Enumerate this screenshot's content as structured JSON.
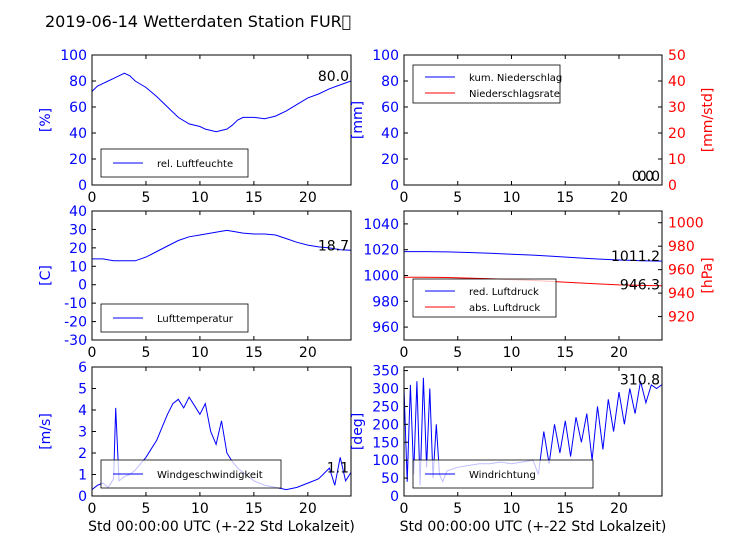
{
  "title": "2019-06-14 Wetterdaten Station FUR\u0000",
  "colors": {
    "left_axis": "#0000ff",
    "right_axis": "#ff0000",
    "text": "#000000",
    "blue": "#0000ff",
    "red": "#ff0000"
  },
  "chart_data": [
    {
      "id": "humidity",
      "type": "line",
      "xlim": [
        0,
        24
      ],
      "ylim": [
        0,
        100
      ],
      "xticks": [
        "0",
        "5",
        "10",
        "15",
        "20"
      ],
      "yticks": [
        "0",
        "20",
        "40",
        "60",
        "80",
        "100"
      ],
      "ylabel": "[%]",
      "last_value": "80.0",
      "legend": {
        "loc": "lower-left"
      },
      "series": [
        {
          "name": "rel. Luftfeuchte",
          "color": "blue",
          "x": [
            0,
            0.5,
            1,
            1.5,
            2,
            2.5,
            3,
            3.5,
            4,
            5,
            6,
            7,
            8,
            9,
            10,
            10.5,
            11,
            11.5,
            12,
            12.5,
            13,
            13.5,
            14,
            15,
            16,
            17,
            18,
            19,
            20,
            21,
            22,
            23,
            24
          ],
          "y": [
            72,
            76,
            78,
            80,
            82,
            84,
            86,
            84,
            80,
            75,
            68,
            60,
            52,
            47,
            45,
            43,
            42,
            41,
            42,
            43,
            46,
            50,
            52,
            52,
            51,
            53,
            57,
            62,
            67,
            70,
            74,
            77,
            80
          ]
        }
      ]
    },
    {
      "id": "precip",
      "type": "line",
      "xlim": [
        0,
        24
      ],
      "ylim": [
        0,
        100
      ],
      "y2lim": [
        0,
        50
      ],
      "xticks": [
        "0",
        "5",
        "10",
        "15",
        "20"
      ],
      "yticks": [
        "0",
        "20",
        "40",
        "60",
        "80",
        "100"
      ],
      "y2ticks": [
        "0",
        "10",
        "20",
        "30",
        "40",
        "50"
      ],
      "ylabel": "[mm]",
      "y2label": "[mm/std]",
      "last_value": "0.0",
      "last_value2": "0.0",
      "legend": {
        "loc": "upper-left"
      },
      "series": [
        {
          "name": "kum. Niederschlag",
          "color": "blue",
          "axis": "left",
          "x": [
            0,
            24
          ],
          "y": [
            0,
            0
          ]
        },
        {
          "name": "Niederschlagsrate",
          "color": "red",
          "axis": "right",
          "x": [
            0,
            24
          ],
          "y": [
            0,
            0
          ]
        }
      ]
    },
    {
      "id": "temperature",
      "type": "line",
      "xlim": [
        0,
        24
      ],
      "ylim": [
        -30,
        40
      ],
      "xticks": [
        "0",
        "5",
        "10",
        "15",
        "20"
      ],
      "yticks": [
        "-30",
        "-20",
        "-10",
        "0",
        "10",
        "20",
        "30",
        "40"
      ],
      "ylabel": "[C]",
      "last_value": "18.7",
      "legend": {
        "loc": "lower-left"
      },
      "series": [
        {
          "name": "Lufttemperatur",
          "color": "blue",
          "x": [
            0,
            1,
            2,
            3,
            4,
            5,
            6,
            7,
            8,
            9,
            10,
            11,
            12,
            12.5,
            13,
            14,
            15,
            16,
            17,
            18,
            19,
            20,
            21,
            22,
            23,
            24
          ],
          "y": [
            14,
            14,
            13,
            13,
            13,
            15,
            18,
            21,
            24,
            26,
            27,
            28,
            29,
            29.5,
            29,
            28,
            27.5,
            27.5,
            27,
            25,
            23,
            21.5,
            20.5,
            20,
            19,
            18.7
          ]
        }
      ]
    },
    {
      "id": "pressure",
      "type": "line",
      "xlim": [
        0,
        24
      ],
      "ylim": [
        950,
        1050
      ],
      "y2lim": [
        900,
        1010
      ],
      "xticks": [
        "0",
        "5",
        "10",
        "15",
        "20"
      ],
      "yticks": [
        "960",
        "980",
        "1000",
        "1020",
        "1040"
      ],
      "y2ticks": [
        "920",
        "940",
        "960",
        "980",
        "1000"
      ],
      "y2label": "[hPa]",
      "last_value": "1011.2",
      "last_value2": "946.3",
      "legend": {
        "loc": "lower-left"
      },
      "series": [
        {
          "name": "red. Luftdruck",
          "color": "blue",
          "axis": "left",
          "x": [
            0,
            2,
            4,
            6,
            8,
            10,
            12,
            14,
            16,
            18,
            20,
            22,
            24
          ],
          "y": [
            1018.5,
            1018.5,
            1018.3,
            1017.8,
            1017.2,
            1016.5,
            1015.8,
            1014.8,
            1013.8,
            1012.8,
            1012,
            1011.5,
            1011.2
          ]
        },
        {
          "name": "abs. Luftdruck",
          "color": "red",
          "axis": "right",
          "x": [
            0,
            2,
            4,
            6,
            8,
            10,
            12,
            14,
            16,
            18,
            20,
            22,
            24
          ],
          "y": [
            953.5,
            953.5,
            953.3,
            952.8,
            952.2,
            951.5,
            950.8,
            949.8,
            948.8,
            947.8,
            947,
            946.6,
            946.3
          ]
        }
      ]
    },
    {
      "id": "wind_speed",
      "type": "line",
      "xlim": [
        0,
        24
      ],
      "ylim": [
        0,
        6
      ],
      "xticks": [
        "0",
        "5",
        "10",
        "15",
        "20"
      ],
      "yticks": [
        "0",
        "1",
        "2",
        "3",
        "4",
        "5",
        "6"
      ],
      "ylabel": "[m/s]",
      "xlabel": "Std 00:00:00 UTC (+-22 Std Lokalzeit)",
      "last_value": "1.1",
      "legend": {
        "loc": "lower-left"
      },
      "series": [
        {
          "name": "Windgeschwindigkeit",
          "color": "blue",
          "x": [
            0,
            0.5,
            1,
            1.5,
            2,
            2.2,
            2.5,
            3,
            3.5,
            4,
            4.5,
            5,
            5.5,
            6,
            6.5,
            7,
            7.5,
            8,
            8.5,
            9,
            9.5,
            10,
            10.5,
            11,
            11.5,
            12,
            12.5,
            13,
            13.5,
            14,
            14.5,
            15,
            16,
            17,
            18,
            19,
            20,
            21,
            22,
            22.5,
            23,
            23.5,
            24
          ],
          "y": [
            0.3,
            0.5,
            0.6,
            0.4,
            0.8,
            4.1,
            0.7,
            0.9,
            1,
            1.2,
            1.5,
            1.8,
            2.2,
            2.6,
            3.2,
            3.8,
            4.3,
            4.5,
            4.1,
            4.6,
            4.2,
            3.8,
            4.3,
            3,
            2.4,
            3.5,
            2,
            1.6,
            1.3,
            1.1,
            0.9,
            0.7,
            0.5,
            0.4,
            0.3,
            0.4,
            0.6,
            0.8,
            1.3,
            0.5,
            1.8,
            0.7,
            1.1
          ]
        }
      ]
    },
    {
      "id": "wind_dir",
      "type": "line",
      "xlim": [
        0,
        24
      ],
      "ylim": [
        0,
        360
      ],
      "xticks": [
        "0",
        "5",
        "10",
        "15",
        "20"
      ],
      "yticks": [
        "0",
        "50",
        "100",
        "150",
        "200",
        "250",
        "300",
        "350"
      ],
      "ylabel": "[deg]",
      "xlabel": "Std 00:00:00 UTC (+-22 Std Lokalzeit)",
      "last_value": "310.8",
      "legend": {
        "loc": "lower-left"
      },
      "series": [
        {
          "name": "Windrichtung",
          "color": "blue",
          "x": [
            0,
            0.3,
            0.6,
            0.9,
            1.2,
            1.5,
            1.8,
            2.1,
            2.4,
            2.7,
            3,
            3.3,
            3.6,
            4,
            5,
            6,
            7,
            8,
            9,
            10,
            11,
            12,
            12.5,
            13,
            13.5,
            14,
            14.5,
            15,
            15.5,
            16,
            16.5,
            17,
            17.5,
            18,
            18.5,
            19,
            19.5,
            20,
            20.5,
            21,
            21.5,
            22,
            22.5,
            23,
            23.5,
            24
          ],
          "y": [
            300,
            40,
            310,
            60,
            320,
            30,
            330,
            80,
            300,
            50,
            200,
            60,
            40,
            70,
            80,
            85,
            90,
            90,
            95,
            90,
            95,
            100,
            60,
            180,
            90,
            200,
            120,
            210,
            110,
            220,
            150,
            230,
            100,
            250,
            130,
            270,
            180,
            290,
            200,
            300,
            230,
            320,
            260,
            310,
            300,
            310.8
          ]
        }
      ]
    }
  ]
}
